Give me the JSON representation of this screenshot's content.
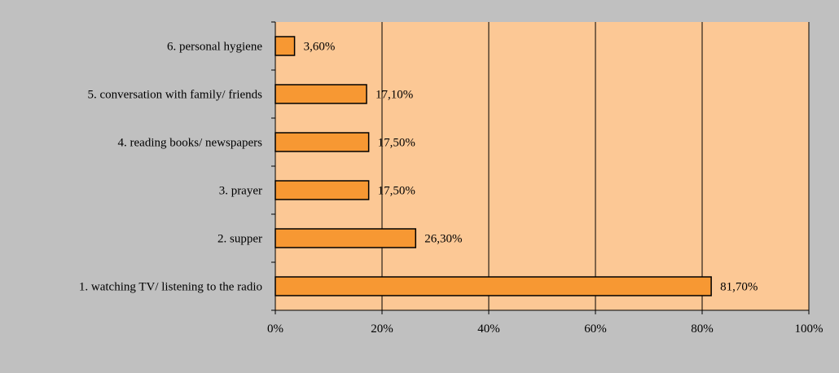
{
  "chart_data": {
    "type": "bar",
    "orientation": "horizontal",
    "categories": [
      "1. watching TV/ listening to the radio",
      "2. supper",
      "3. prayer ",
      "4. reading books/ newspapers",
      "5. conversation with family/ friends",
      "6. personal hygiene"
    ],
    "values": [
      81.7,
      26.3,
      17.5,
      17.5,
      17.1,
      3.6
    ],
    "data_labels": [
      "81,70%",
      "26,30%",
      "17,50%",
      "17,50%",
      "17,10%",
      "3,60%"
    ],
    "x_ticks": [
      "0%",
      "20%",
      "40%",
      "60%",
      "80%",
      "100%"
    ],
    "xlim": [
      0,
      100
    ],
    "title": "",
    "xlabel": "",
    "ylabel": "",
    "grid": "vertical",
    "legend": "none",
    "colors": {
      "outer_background": "#c0c0c0",
      "plot_background": "#fcc895",
      "bar_fill": "#f79833",
      "bar_stroke": "#000000",
      "gridline": "#000000"
    }
  }
}
